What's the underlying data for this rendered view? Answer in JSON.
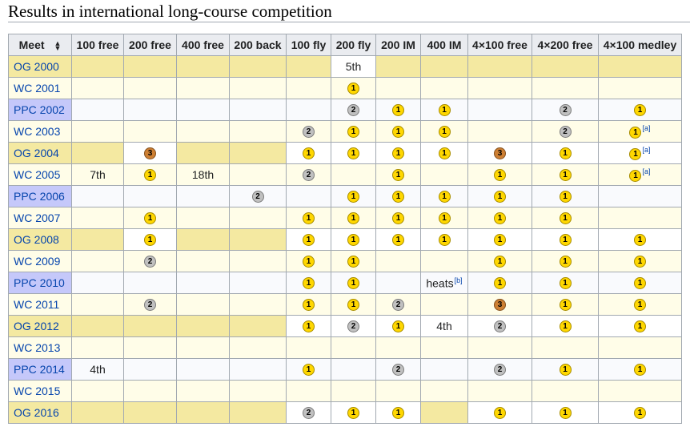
{
  "title": "Results in international long-course competition",
  "colors": {
    "og": "#f4e9a1",
    "wc": "#fffde8",
    "ppc_meet": "#c5c8fa",
    "ppc_cell": "#f9fafd",
    "gold": "#ffd700",
    "silver": "#c0c0c0",
    "bronze": "#cd7f32"
  },
  "columns": [
    "Meet",
    "100 free",
    "200 free",
    "400 free",
    "200 back",
    "100 fly",
    "200 fly",
    "200 IM",
    "400 IM",
    "4×100 free",
    "4×200 free",
    "4×100 medley"
  ],
  "rows": [
    {
      "meet": "OG 2000",
      "kind": "og",
      "cells": [
        "",
        "",
        "",
        "",
        "",
        "5th",
        "",
        "",
        "",
        "",
        ""
      ]
    },
    {
      "meet": "WC 2001",
      "kind": "wc",
      "cells": [
        "",
        "",
        "",
        "",
        "",
        "1",
        "",
        "",
        "",
        "",
        ""
      ]
    },
    {
      "meet": "PPC 2002",
      "kind": "ppc",
      "cells": [
        "",
        "",
        "",
        "",
        "",
        "2",
        "1",
        "1",
        "",
        "2",
        "1"
      ]
    },
    {
      "meet": "WC 2003",
      "kind": "wc",
      "cells": [
        "",
        "",
        "",
        "",
        "2",
        "1",
        "1",
        "1",
        "",
        "2",
        "1|[a]"
      ]
    },
    {
      "meet": "OG 2004",
      "kind": "og",
      "cells": [
        "",
        "3",
        "",
        "",
        "1",
        "1",
        "1",
        "1",
        "3",
        "1",
        "1|[a]"
      ]
    },
    {
      "meet": "WC 2005",
      "kind": "wc",
      "cells": [
        "7th",
        "1",
        "18th",
        "",
        "2",
        "",
        "1",
        "",
        "1",
        "1",
        "1|[a]"
      ]
    },
    {
      "meet": "PPC 2006",
      "kind": "ppc",
      "cells": [
        "",
        "",
        "",
        "2",
        "",
        "1",
        "1",
        "1",
        "1",
        "1",
        ""
      ]
    },
    {
      "meet": "WC 2007",
      "kind": "wc",
      "cells": [
        "",
        "1",
        "",
        "",
        "1",
        "1",
        "1",
        "1",
        "1",
        "1",
        ""
      ]
    },
    {
      "meet": "OG 2008",
      "kind": "og",
      "cells": [
        "",
        "1",
        "",
        "",
        "1",
        "1",
        "1",
        "1",
        "1",
        "1",
        "1"
      ]
    },
    {
      "meet": "WC 2009",
      "kind": "wc",
      "cells": [
        "",
        "2",
        "",
        "",
        "1",
        "1",
        "",
        "",
        "1",
        "1",
        "1"
      ]
    },
    {
      "meet": "PPC 2010",
      "kind": "ppc",
      "cells": [
        "",
        "",
        "",
        "",
        "1",
        "1",
        "",
        "heats|[b]",
        "1",
        "1",
        "1"
      ]
    },
    {
      "meet": "WC 2011",
      "kind": "wc",
      "cells": [
        "",
        "2",
        "",
        "",
        "1",
        "1",
        "2",
        "",
        "3",
        "1",
        "1"
      ]
    },
    {
      "meet": "OG 2012",
      "kind": "og",
      "cells": [
        "",
        "",
        "",
        "",
        "1",
        "2",
        "1",
        "4th",
        "2",
        "1",
        "1"
      ]
    },
    {
      "meet": "WC 2013",
      "kind": "wc",
      "cells": [
        "",
        "",
        "",
        "",
        "",
        "",
        "",
        "",
        "",
        "",
        ""
      ]
    },
    {
      "meet": "PPC 2014",
      "kind": "ppc",
      "cells": [
        "4th",
        "",
        "",
        "",
        "1",
        "",
        "2",
        "",
        "2",
        "1",
        "1"
      ]
    },
    {
      "meet": "WC 2015",
      "kind": "wc",
      "cells": [
        "",
        "",
        "",
        "",
        "",
        "",
        "",
        "",
        "",
        "",
        ""
      ]
    },
    {
      "meet": "OG 2016",
      "kind": "og",
      "cells": [
        "",
        "",
        "",
        "",
        "2",
        "1",
        "1",
        "",
        "1",
        "1",
        "1"
      ]
    }
  ]
}
